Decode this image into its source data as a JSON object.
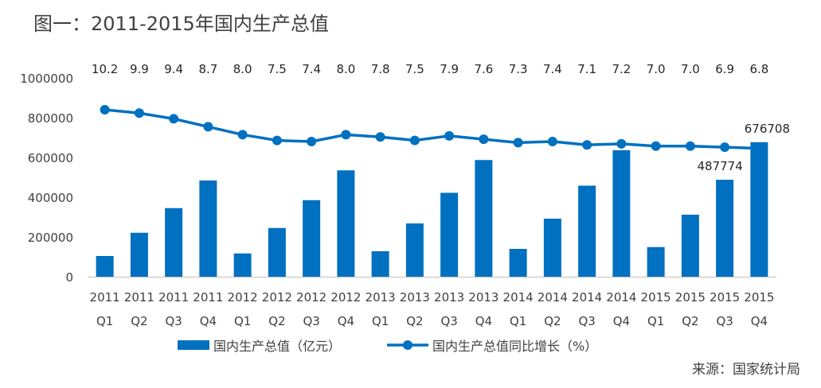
{
  "title": "图一：2011-2015年国内生产总值",
  "source": "来源：国家统计局",
  "chart_data": {
    "type": "bar+line",
    "categories": [
      [
        "2011",
        "Q1"
      ],
      [
        "2011",
        "Q2"
      ],
      [
        "2011",
        "Q3"
      ],
      [
        "2011",
        "Q4"
      ],
      [
        "2012",
        "Q1"
      ],
      [
        "2012",
        "Q2"
      ],
      [
        "2012",
        "Q3"
      ],
      [
        "2012",
        "Q4"
      ],
      [
        "2013",
        "Q1"
      ],
      [
        "2013",
        "Q2"
      ],
      [
        "2013",
        "Q3"
      ],
      [
        "2013",
        "Q4"
      ],
      [
        "2014",
        "Q1"
      ],
      [
        "2014",
        "Q2"
      ],
      [
        "2014",
        "Q3"
      ],
      [
        "2014",
        "Q4"
      ],
      [
        "2015",
        "Q1"
      ],
      [
        "2015",
        "Q2"
      ],
      [
        "2015",
        "Q3"
      ],
      [
        "2015",
        "Q4"
      ]
    ],
    "series": [
      {
        "name": "国内生产总值（亿元）",
        "kind": "bar",
        "color": "#0070C0",
        "values": [
          104000,
          221000,
          345000,
          484000,
          117000,
          245000,
          385000,
          535000,
          128000,
          268000,
          422000,
          587000,
          140000,
          292000,
          458000,
          636000,
          149000,
          312000,
          487774,
          676708
        ],
        "labeled_values": {
          "18": "487774",
          "19": "676708"
        }
      },
      {
        "name": "国内生产总值同比增长（%）",
        "kind": "line",
        "color": "#0070C0",
        "values": [
          10.2,
          9.9,
          9.4,
          8.7,
          8.0,
          7.5,
          7.4,
          8.0,
          7.8,
          7.5,
          7.9,
          7.6,
          7.3,
          7.4,
          7.1,
          7.2,
          7.0,
          7.0,
          6.9,
          6.8
        ],
        "labels": [
          "10.2",
          "9.9",
          "9.4",
          "8.7",
          "8.0",
          "7.5",
          "7.4",
          "8.0",
          "7.8",
          "7.5",
          "7.9",
          "7.6",
          "7.3",
          "7.4",
          "7.1",
          "7.2",
          "7.0",
          "7.0",
          "6.9",
          "6.8"
        ],
        "secondary_ylim": [
          -4.5,
          13
        ]
      }
    ],
    "y_ticks": [
      "0",
      "200000",
      "400000",
      "600000",
      "800000",
      "1000000"
    ],
    "ylim": [
      0,
      1000000
    ],
    "xlabel": "",
    "ylabel": "",
    "legend": "bottom",
    "grid": false
  }
}
